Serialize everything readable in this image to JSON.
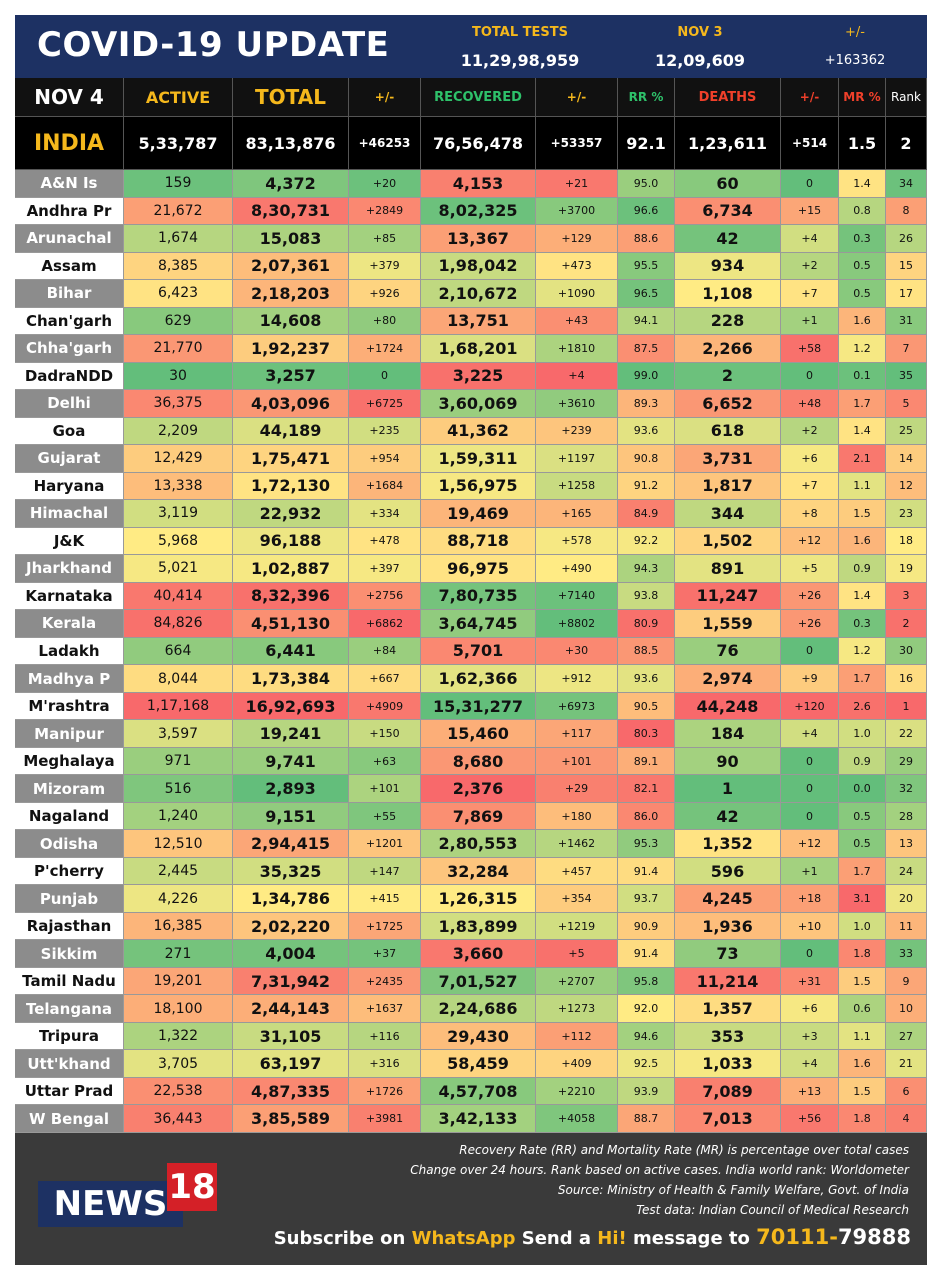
{
  "header": {
    "title": "COVID-19 UPDATE",
    "tests_label": "TOTAL TESTS",
    "tests_value": "11,29,98,959",
    "prev_label": "NOV 3",
    "prev_value": "12,09,609",
    "change_label": "+/-",
    "change_value": "+163362"
  },
  "table": {
    "columns": [
      "NOV 4",
      "ACTIVE",
      "TOTAL",
      "+/-",
      "RECOVERED",
      "+/-",
      "RR %",
      "DEATHS",
      "+/-",
      "MR %",
      "Rank"
    ],
    "india": [
      "INDIA",
      "5,33,787",
      "83,13,876",
      "+46253",
      "76,56,478",
      "+53357",
      "92.1",
      "1,23,611",
      "+514",
      "1.5",
      "2"
    ],
    "rows": [
      [
        "A&N Is",
        "159",
        "4,372",
        "+20",
        "4,153",
        "+21",
        "95.0",
        "60",
        "0",
        "1.4",
        "34"
      ],
      [
        "Andhra Pr",
        "21,672",
        "8,30,731",
        "+2849",
        "8,02,325",
        "+3700",
        "96.6",
        "6,734",
        "+15",
        "0.8",
        "8"
      ],
      [
        "Arunachal",
        "1,674",
        "15,083",
        "+85",
        "13,367",
        "+129",
        "88.6",
        "42",
        "+4",
        "0.3",
        "26"
      ],
      [
        "Assam",
        "8,385",
        "2,07,361",
        "+379",
        "1,98,042",
        "+473",
        "95.5",
        "934",
        "+2",
        "0.5",
        "15"
      ],
      [
        "Bihar",
        "6,423",
        "2,18,203",
        "+926",
        "2,10,672",
        "+1090",
        "96.5",
        "1,108",
        "+7",
        "0.5",
        "17"
      ],
      [
        "Chan'garh",
        "629",
        "14,608",
        "+80",
        "13,751",
        "+43",
        "94.1",
        "228",
        "+1",
        "1.6",
        "31"
      ],
      [
        "Chha'garh",
        "21,770",
        "1,92,237",
        "+1724",
        "1,68,201",
        "+1810",
        "87.5",
        "2,266",
        "+58",
        "1.2",
        "7"
      ],
      [
        "DadraNDD",
        "30",
        "3,257",
        "0",
        "3,225",
        "+4",
        "99.0",
        "2",
        "0",
        "0.1",
        "35"
      ],
      [
        "Delhi",
        "36,375",
        "4,03,096",
        "+6725",
        "3,60,069",
        "+3610",
        "89.3",
        "6,652",
        "+48",
        "1.7",
        "5"
      ],
      [
        "Goa",
        "2,209",
        "44,189",
        "+235",
        "41,362",
        "+239",
        "93.6",
        "618",
        "+2",
        "1.4",
        "25"
      ],
      [
        "Gujarat",
        "12,429",
        "1,75,471",
        "+954",
        "1,59,311",
        "+1197",
        "90.8",
        "3,731",
        "+6",
        "2.1",
        "14"
      ],
      [
        "Haryana",
        "13,338",
        "1,72,130",
        "+1684",
        "1,56,975",
        "+1258",
        "91.2",
        "1,817",
        "+7",
        "1.1",
        "12"
      ],
      [
        "Himachal",
        "3,119",
        "22,932",
        "+334",
        "19,469",
        "+165",
        "84.9",
        "344",
        "+8",
        "1.5",
        "23"
      ],
      [
        "J&K",
        "5,968",
        "96,188",
        "+478",
        "88,718",
        "+578",
        "92.2",
        "1,502",
        "+12",
        "1.6",
        "18"
      ],
      [
        "Jharkhand",
        "5,021",
        "1,02,887",
        "+397",
        "96,975",
        "+490",
        "94.3",
        "891",
        "+5",
        "0.9",
        "19"
      ],
      [
        "Karnataka",
        "40,414",
        "8,32,396",
        "+2756",
        "7,80,735",
        "+7140",
        "93.8",
        "11,247",
        "+26",
        "1.4",
        "3"
      ],
      [
        "Kerala",
        "84,826",
        "4,51,130",
        "+6862",
        "3,64,745",
        "+8802",
        "80.9",
        "1,559",
        "+26",
        "0.3",
        "2"
      ],
      [
        "Ladakh",
        "664",
        "6,441",
        "+84",
        "5,701",
        "+30",
        "88.5",
        "76",
        "0",
        "1.2",
        "30"
      ],
      [
        "Madhya P",
        "8,044",
        "1,73,384",
        "+667",
        "1,62,366",
        "+912",
        "93.6",
        "2,974",
        "+9",
        "1.7",
        "16"
      ],
      [
        "M'rashtra",
        "1,17,168",
        "16,92,693",
        "+4909",
        "15,31,277",
        "+6973",
        "90.5",
        "44,248",
        "+120",
        "2.6",
        "1"
      ],
      [
        "Manipur",
        "3,597",
        "19,241",
        "+150",
        "15,460",
        "+117",
        "80.3",
        "184",
        "+4",
        "1.0",
        "22"
      ],
      [
        "Meghalaya",
        "971",
        "9,741",
        "+63",
        "8,680",
        "+101",
        "89.1",
        "90",
        "0",
        "0.9",
        "29"
      ],
      [
        "Mizoram",
        "516",
        "2,893",
        "+101",
        "2,376",
        "+29",
        "82.1",
        "1",
        "0",
        "0.0",
        "32"
      ],
      [
        "Nagaland",
        "1,240",
        "9,151",
        "+55",
        "7,869",
        "+180",
        "86.0",
        "42",
        "0",
        "0.5",
        "28"
      ],
      [
        "Odisha",
        "12,510",
        "2,94,415",
        "+1201",
        "2,80,553",
        "+1462",
        "95.3",
        "1,352",
        "+12",
        "0.5",
        "13"
      ],
      [
        "P'cherry",
        "2,445",
        "35,325",
        "+147",
        "32,284",
        "+457",
        "91.4",
        "596",
        "+1",
        "1.7",
        "24"
      ],
      [
        "Punjab",
        "4,226",
        "1,34,786",
        "+415",
        "1,26,315",
        "+354",
        "93.7",
        "4,245",
        "+18",
        "3.1",
        "20"
      ],
      [
        "Rajasthan",
        "16,385",
        "2,02,220",
        "+1725",
        "1,83,899",
        "+1219",
        "90.9",
        "1,936",
        "+10",
        "1.0",
        "11"
      ],
      [
        "Sikkim",
        "271",
        "4,004",
        "+37",
        "3,660",
        "+5",
        "91.4",
        "73",
        "0",
        "1.8",
        "33"
      ],
      [
        "Tamil Nadu",
        "19,201",
        "7,31,942",
        "+2435",
        "7,01,527",
        "+2707",
        "95.8",
        "11,214",
        "+31",
        "1.5",
        "9"
      ],
      [
        "Telangana",
        "18,100",
        "2,44,143",
        "+1637",
        "2,24,686",
        "+1273",
        "92.0",
        "1,357",
        "+6",
        "0.6",
        "10"
      ],
      [
        "Tripura",
        "1,322",
        "31,105",
        "+116",
        "29,430",
        "+112",
        "94.6",
        "353",
        "+3",
        "1.1",
        "27"
      ],
      [
        "Utt'khand",
        "3,705",
        "63,197",
        "+316",
        "58,459",
        "+409",
        "92.5",
        "1,033",
        "+4",
        "1.6",
        "21"
      ],
      [
        "Uttar Prad",
        "22,538",
        "4,87,335",
        "+1726",
        "4,57,708",
        "+2210",
        "93.9",
        "7,089",
        "+13",
        "1.5",
        "6"
      ],
      [
        "W Bengal",
        "36,443",
        "3,85,589",
        "+3981",
        "3,42,133",
        "+4058",
        "88.7",
        "7,013",
        "+56",
        "1.8",
        "4"
      ]
    ]
  },
  "footer": {
    "notes": [
      "Recovery Rate (RR) and Mortality Rate (MR) is percentage over total cases",
      "Change over 24 hours. Rank based on active cases. India world rank: Worldometer",
      "Source: Ministry of Health & Family Welfare, Govt. of India",
      "Test data: Indian Council of Medical Research"
    ],
    "logo": [
      "NEWS",
      "18"
    ],
    "subscribe": [
      "Subscribe on ",
      "WhatsApp",
      " Send a ",
      "Hi!",
      " message to ",
      "70111-",
      "79888"
    ]
  }
}
